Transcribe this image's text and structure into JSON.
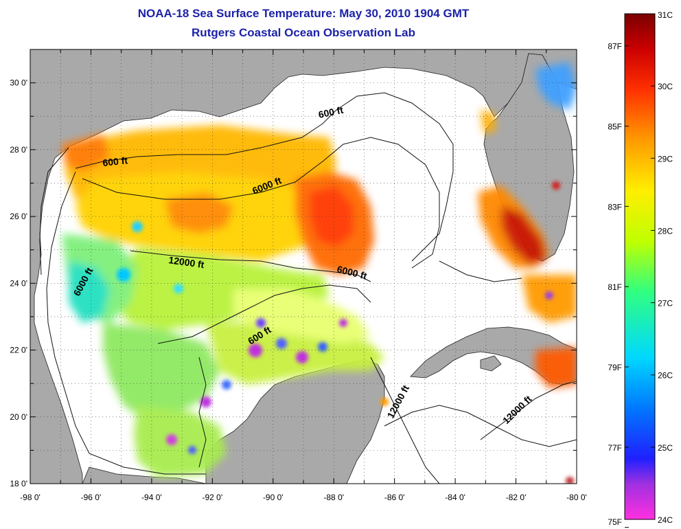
{
  "header": {
    "title_line1": "NOAA-18 Sea Surface Temperature:  May 30, 2010 1904 GMT",
    "title_line2": "Rutgers Coastal Ocean Observation Lab"
  },
  "axes": {
    "x_ticks": [
      "-98 0'",
      "-96 0'",
      "-94 0'",
      "-92 0'",
      "-90 0'",
      "-88 0'",
      "-86 0'",
      "-84 0'",
      "-82 0'",
      "-80 0'"
    ],
    "y_ticks": [
      "30 0'",
      "28 0'",
      "26 0'",
      "24 0'",
      "22 0'",
      "20 0'",
      "18 0'"
    ],
    "lon_range": [
      -98,
      -80
    ],
    "lat_range": [
      18,
      31
    ]
  },
  "contour_labels": [
    "600 ft",
    "600 ft",
    "6000 ft",
    "12000 ft",
    "6000 ft",
    "6000 ft",
    "600 ft",
    "12000 ft",
    "12000 ft"
  ],
  "colorbar": {
    "celsius_labels": [
      "31C",
      "30C",
      "29C",
      "28C",
      "27C",
      "26C",
      "25C",
      "24C"
    ],
    "fahrenheit_labels": [
      "87F",
      "85F",
      "83F",
      "81F",
      "79F",
      "77F",
      "75F"
    ],
    "colors": [
      "#ff30d8",
      "#7a2bd6",
      "#0000ff",
      "#0090ff",
      "#00e8ff",
      "#40ff90",
      "#c8ff00",
      "#ffee00",
      "#ff9a00",
      "#ff3a00",
      "#cc0000",
      "#800000"
    ]
  },
  "colors": {
    "land": "#a9a9a9",
    "ocean_nodata": "#ffffff",
    "title": "#1c22a8"
  }
}
